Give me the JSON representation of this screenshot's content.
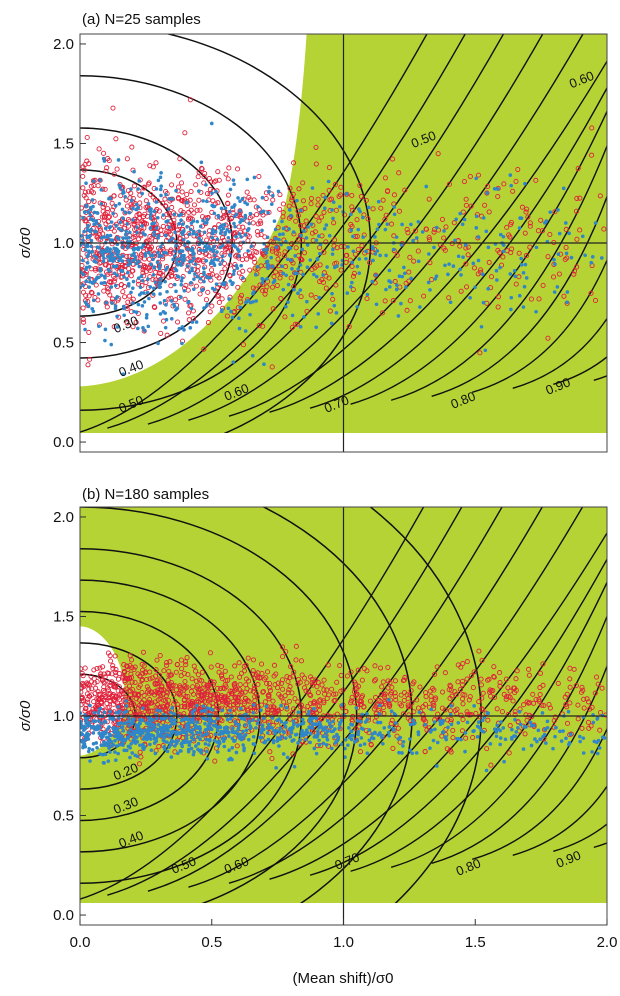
{
  "chart_data": [
    {
      "type": "scatter",
      "title": "(a) N=25 samples",
      "xlabel": "",
      "ylabel": "σ/σ0",
      "xlim": [
        0.0,
        2.0
      ],
      "ylim": [
        0.0,
        2.0
      ],
      "x_ticks": [
        "0.0",
        "0.5",
        "1.0",
        "1.5",
        "2.0"
      ],
      "y_ticks": [
        "0.0",
        "0.5",
        "1.0",
        "1.5",
        "2.0"
      ],
      "shaded_region_color": "#b5d334",
      "reference_lines": {
        "x": 1.0,
        "y": 1.0
      },
      "contour_labels": [
        {
          "text": "0.30",
          "x": 0.18,
          "y": 0.57
        },
        {
          "text": "0.40",
          "x": 0.2,
          "y": 0.35
        },
        {
          "text": "0.50",
          "x": 0.2,
          "y": 0.17
        },
        {
          "text": "0.60",
          "x": 0.6,
          "y": 0.23
        },
        {
          "text": "0.70",
          "x": 0.98,
          "y": 0.17
        },
        {
          "text": "0.80",
          "x": 1.46,
          "y": 0.19
        },
        {
          "text": "0.90",
          "x": 1.82,
          "y": 0.26
        },
        {
          "text": "0.50",
          "x": 1.31,
          "y": 1.5
        },
        {
          "text": "0.60",
          "x": 1.91,
          "y": 1.8
        }
      ],
      "series": [
        {
          "color": "#e0213b",
          "marker": "open-circle",
          "center": [
            0.3,
            1.0
          ],
          "spread_x": 0.5,
          "spread_y": 0.2,
          "n": 1200
        },
        {
          "color": "#2f86c8",
          "marker": "filled-dot",
          "center": [
            0.3,
            0.95
          ],
          "spread_x": 0.5,
          "spread_y": 0.18,
          "n": 900
        }
      ]
    },
    {
      "type": "scatter",
      "title": "(b) N=180 samples",
      "xlabel": "(Mean shift)/σ0",
      "ylabel": "σ/σ0",
      "xlim": [
        0.0,
        2.0
      ],
      "ylim": [
        0.0,
        2.0
      ],
      "x_ticks": [
        "0.0",
        "0.5",
        "1.0",
        "1.5",
        "2.0"
      ],
      "y_ticks": [
        "0.0",
        "0.5",
        "1.0",
        "1.5",
        "2.0"
      ],
      "shaded_region_color": "#b5d334",
      "reference_lines": {
        "x": 1.0,
        "y": 1.0
      },
      "contour_labels": [
        {
          "text": "0.20",
          "x": 0.18,
          "y": 0.7
        },
        {
          "text": "0.30",
          "x": 0.18,
          "y": 0.53
        },
        {
          "text": "0.40",
          "x": 0.2,
          "y": 0.36
        },
        {
          "text": "0.50",
          "x": 0.4,
          "y": 0.23
        },
        {
          "text": "0.60",
          "x": 0.6,
          "y": 0.23
        },
        {
          "text": "0.70",
          "x": 1.02,
          "y": 0.25
        },
        {
          "text": "0.80",
          "x": 1.48,
          "y": 0.22
        },
        {
          "text": "0.90",
          "x": 1.86,
          "y": 0.26
        }
      ],
      "series": [
        {
          "color": "#e0213b",
          "marker": "open-circle",
          "center": [
            0.3,
            1.07
          ],
          "spread_x": 0.6,
          "spread_y": 0.1,
          "n": 1400
        },
        {
          "color": "#2f86c8",
          "marker": "filled-dot",
          "center": [
            0.3,
            0.92
          ],
          "spread_x": 0.6,
          "spread_y": 0.06,
          "n": 900
        }
      ]
    }
  ]
}
